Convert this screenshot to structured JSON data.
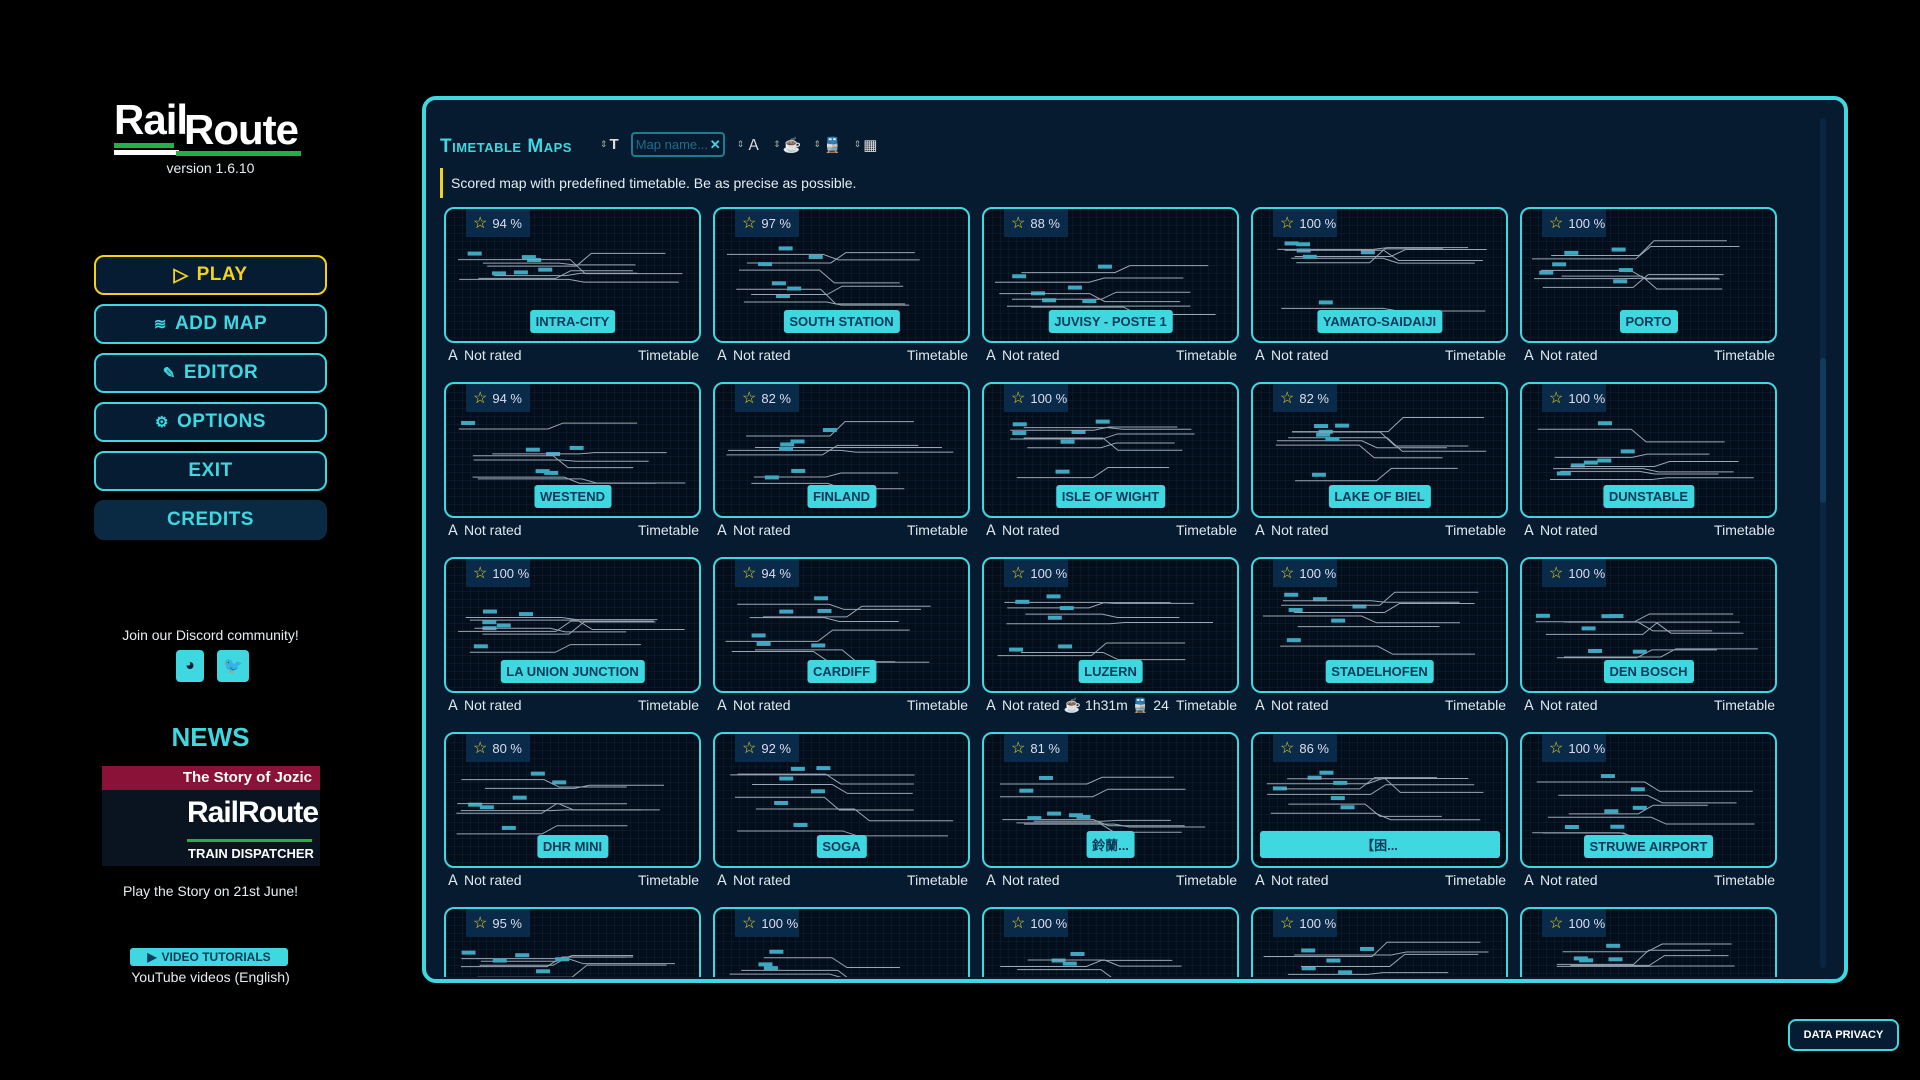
{
  "logo": {
    "word1": "Rail",
    "word2": "Route"
  },
  "version": "version 1.6.10",
  "menu": [
    {
      "label": "PLAY",
      "icon": "play-icon"
    },
    {
      "label": "ADD MAP",
      "icon": "add-map-icon"
    },
    {
      "label": "EDITOR",
      "icon": "pencil-icon"
    },
    {
      "label": "OPTIONS",
      "icon": "gear-icon"
    },
    {
      "label": "EXIT"
    },
    {
      "label": "CREDITS"
    }
  ],
  "community": {
    "text": "Join our Discord community!"
  },
  "news": {
    "title": "NEWS",
    "banner": "The Story of Jozic",
    "logo_word1": "Rail",
    "logo_word2": "Route",
    "logo_sub": "TRAIN DISPATCHER",
    "caption": "Play the Story on 21st June!"
  },
  "tutorials": {
    "button": "VIDEO TUTORIALS",
    "caption": "YouTube videos (English)"
  },
  "panel": {
    "title": "Timetable Maps",
    "search_placeholder": "Map name...",
    "search_value": "",
    "description": "Scored map with predefined timetable. Be as precise as possible."
  },
  "colors": {
    "accent": "#3fd8e0",
    "highlight": "#f2d21b",
    "panel": "#061b30"
  },
  "cards": [
    {
      "score": "94 %",
      "name": "INTRA-CITY",
      "rating": "Not rated",
      "type": "Timetable"
    },
    {
      "score": "97 %",
      "name": "SOUTH STATION",
      "rating": "Not rated",
      "type": "Timetable"
    },
    {
      "score": "88 %",
      "name": "JUVISY - POSTE 1",
      "rating": "Not rated",
      "type": "Timetable"
    },
    {
      "score": "100 %",
      "name": "YAMATO-SAIDAIJI",
      "rating": "Not rated",
      "type": "Timetable"
    },
    {
      "score": "100 %",
      "name": "PORTO",
      "rating": "Not rated",
      "type": "Timetable"
    },
    {
      "score": "94 %",
      "name": "WESTEND",
      "rating": "Not rated",
      "type": "Timetable"
    },
    {
      "score": "82 %",
      "name": "FINLAND",
      "rating": "Not rated",
      "type": "Timetable"
    },
    {
      "score": "100 %",
      "name": "ISLE OF WIGHT",
      "rating": "Not rated",
      "type": "Timetable"
    },
    {
      "score": "82 %",
      "name": "LAKE OF BIEL",
      "rating": "Not rated",
      "type": "Timetable"
    },
    {
      "score": "100 %",
      "name": "DUNSTABLE",
      "rating": "Not rated",
      "type": "Timetable"
    },
    {
      "score": "100 %",
      "name": "LA UNION JUNCTION",
      "rating": "Not rated",
      "type": "Timetable"
    },
    {
      "score": "94 %",
      "name": "CARDIFF",
      "rating": "Not rated",
      "type": "Timetable"
    },
    {
      "score": "100 %",
      "name": "LUZERN",
      "rating": "Not rated",
      "duration": "1h31m",
      "trains": "24",
      "type": "Timetable"
    },
    {
      "score": "100 %",
      "name": "STADELHOFEN",
      "rating": "Not rated",
      "type": "Timetable"
    },
    {
      "score": "100 %",
      "name": "DEN BOSCH",
      "rating": "Not rated",
      "type": "Timetable"
    },
    {
      "score": "80 %",
      "name": "DHR MINI",
      "rating": "Not rated",
      "type": "Timetable"
    },
    {
      "score": "92 %",
      "name": "SOGA",
      "rating": "Not rated",
      "type": "Timetable"
    },
    {
      "score": "81 %",
      "name": "鈴蘭...",
      "rating": "Not rated",
      "type": "Timetable"
    },
    {
      "score": "86 %",
      "name": "【困...",
      "rating": "Not rated",
      "type": "Timetable"
    },
    {
      "score": "100 %",
      "name": "STRUWE AIRPORT",
      "rating": "Not rated",
      "type": "Timetable"
    },
    {
      "score": "95 %"
    },
    {
      "score": "100 %"
    },
    {
      "score": "100 %"
    },
    {
      "score": "100 %"
    },
    {
      "score": "100 %"
    }
  ],
  "privacy": "DATA PRIVACY"
}
